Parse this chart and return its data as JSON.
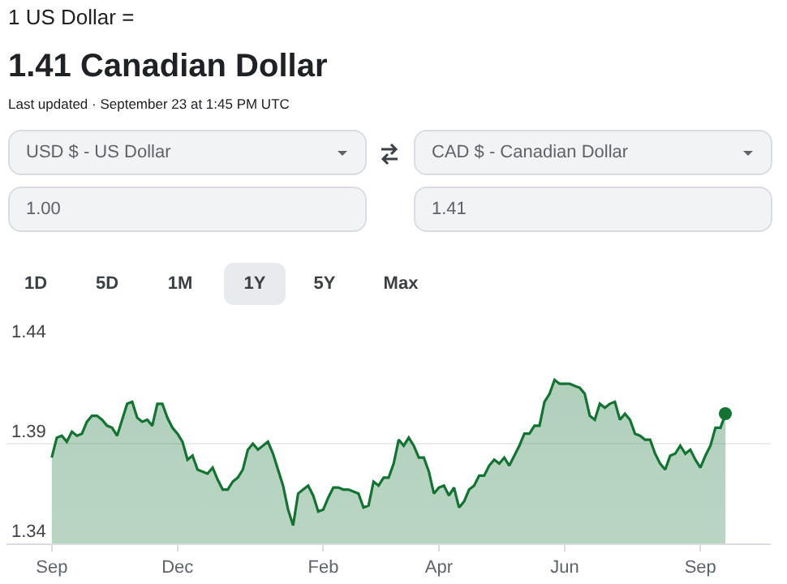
{
  "chart_data": {
    "type": "area",
    "title": "1 US Dollar =",
    "subtitle": "1.41 Canadian Dollar",
    "annotations": [
      "Last updated · September 23 at 1:45 PM UTC",
      "USD $ - US Dollar",
      "CAD $ - Canadian Dollar",
      "1.00",
      "1.41",
      "1D",
      "5D",
      "1M",
      "1Y",
      "5Y",
      "Max"
    ],
    "categories": [
      "Sep",
      null,
      null,
      null,
      null,
      null,
      null,
      null,
      null,
      null,
      null,
      null,
      null,
      null,
      null,
      null,
      null,
      null,
      null,
      null,
      null,
      null,
      null,
      null,
      null,
      "Dec",
      null,
      null,
      null,
      null,
      null,
      null,
      null,
      null,
      null,
      null,
      null,
      null,
      null,
      null,
      null,
      null,
      null,
      null,
      null,
      null,
      null,
      null,
      null,
      null,
      null,
      null,
      null,
      null,
      "Feb",
      null,
      null,
      null,
      null,
      null,
      null,
      null,
      null,
      null,
      null,
      null,
      null,
      null,
      null,
      null,
      null,
      null,
      null,
      null,
      null,
      null,
      null,
      "Apr",
      null,
      null,
      null,
      null,
      null,
      null,
      null,
      null,
      null,
      null,
      null,
      null,
      null,
      null,
      null,
      null,
      null,
      null,
      null,
      null,
      null,
      null,
      null,
      null,
      "Jun",
      null,
      null,
      null,
      null,
      null,
      null,
      null,
      null,
      null,
      null,
      null,
      null,
      null,
      null,
      null,
      null,
      null,
      null,
      null,
      null,
      null,
      null,
      null,
      null,
      null,
      null,
      "Sep",
      null,
      null,
      null,
      null,
      null
    ],
    "series": [
      {
        "color": "#137333",
        "values": [
          1.383,
          1.393,
          1.394,
          1.391,
          1.396,
          1.394,
          1.395,
          1.401,
          1.404,
          1.404,
          1.402,
          1.399,
          1.398,
          1.394,
          1.402,
          1.41,
          1.411,
          1.403,
          1.401,
          1.402,
          1.399,
          1.41,
          1.41,
          1.403,
          1.398,
          1.395,
          1.391,
          1.382,
          1.384,
          1.377,
          1.376,
          1.375,
          1.378,
          1.372,
          1.367,
          1.367,
          1.371,
          1.373,
          1.377,
          1.387,
          1.39,
          1.387,
          1.389,
          1.391,
          1.385,
          1.377,
          1.369,
          1.357,
          1.349,
          1.365,
          1.367,
          1.369,
          1.364,
          1.356,
          1.357,
          1.363,
          1.368,
          1.368,
          1.367,
          1.367,
          1.366,
          1.365,
          1.358,
          1.359,
          1.371,
          1.369,
          1.373,
          1.373,
          1.38,
          1.392,
          1.389,
          1.393,
          1.389,
          1.383,
          1.383,
          1.376,
          1.365,
          1.368,
          1.369,
          1.364,
          1.368,
          1.358,
          1.361,
          1.367,
          1.369,
          1.374,
          1.374,
          1.379,
          1.382,
          1.38,
          1.383,
          1.379,
          1.384,
          1.389,
          1.395,
          1.395,
          1.399,
          1.399,
          1.411,
          1.415,
          1.422,
          1.42,
          1.42,
          1.42,
          1.419,
          1.418,
          1.415,
          1.404,
          1.402,
          1.41,
          1.408,
          1.41,
          1.411,
          1.402,
          1.405,
          1.402,
          1.395,
          1.394,
          1.392,
          1.392,
          1.385,
          1.38,
          1.377,
          1.384,
          1.385,
          1.389,
          1.385,
          1.387,
          1.382,
          1.378,
          1.384,
          1.389,
          1.398,
          1.398,
          1.405
        ]
      }
    ],
    "ylim": [
      1.34,
      1.44
    ],
    "yticks": [
      1.34,
      1.39,
      1.44
    ],
    "grid": "y",
    "marker": "none",
    "line_style": "solid"
  }
}
